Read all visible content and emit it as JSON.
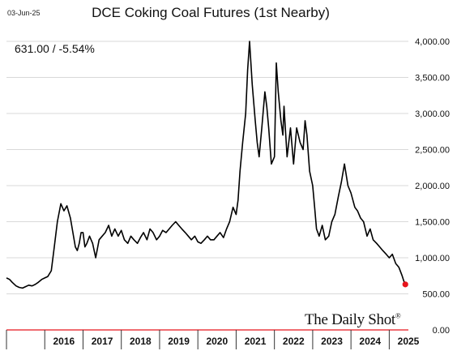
{
  "header": {
    "date": "03-Jun-25",
    "title": "DCE Coking Coal Futures (1st Nearby)",
    "readout": "631.00  /  -5.54%"
  },
  "logo": {
    "text": "The Daily Shot",
    "mark": "®"
  },
  "colors": {
    "line": "#000000",
    "last_point": "#e8141c",
    "grid": "#d9d9d9",
    "marker_line": "#e8141c"
  },
  "chart_data": {
    "type": "line",
    "title": "DCE Coking Coal Futures (1st Nearby)",
    "xlabel": "",
    "ylabel": "",
    "xlim": [
      2015.0,
      2025.5
    ],
    "ylim": [
      0,
      4000
    ],
    "y_axis_side": "right",
    "grid": true,
    "y_ticks": [
      0,
      500,
      1000,
      1500,
      2000,
      2500,
      3000,
      3500,
      4000
    ],
    "y_tick_labels": [
      "0.00",
      "500.00",
      "1,000.00",
      "1,500.00",
      "2,000.00",
      "2,500.00",
      "3,000.00",
      "3,500.00",
      "4,000.00"
    ],
    "x_tick_labels": [
      "2016",
      "2017",
      "2018",
      "2019",
      "2020",
      "2021",
      "2022",
      "2023",
      "2024",
      "2025"
    ],
    "x_tick_positions": [
      2016.0,
      2017.0,
      2018.0,
      2019.0,
      2020.0,
      2021.0,
      2022.0,
      2023.0,
      2024.0,
      2025.0
    ],
    "series": [
      {
        "x": [
          2015.0,
          2015.08,
          2015.15,
          2015.25,
          2015.33,
          2015.42,
          2015.5,
          2015.58,
          2015.67,
          2015.75,
          2015.83,
          2015.92,
          2016.0,
          2016.08,
          2016.17,
          2016.25,
          2016.33,
          2016.42,
          2016.5,
          2016.58,
          2016.67,
          2016.75,
          2016.8,
          2016.85,
          2016.9,
          2016.95,
          2017.0,
          2017.05,
          2017.1,
          2017.17,
          2017.25,
          2017.33,
          2017.42,
          2017.5,
          2017.58,
          2017.67,
          2017.75,
          2017.83,
          2017.92,
          2018.0,
          2018.08,
          2018.17,
          2018.25,
          2018.33,
          2018.42,
          2018.5,
          2018.58,
          2018.67,
          2018.75,
          2018.83,
          2018.92,
          2019.0,
          2019.08,
          2019.17,
          2019.25,
          2019.33,
          2019.42,
          2019.5,
          2019.58,
          2019.67,
          2019.75,
          2019.83,
          2019.92,
          2020.0,
          2020.08,
          2020.17,
          2020.25,
          2020.33,
          2020.42,
          2020.5,
          2020.58,
          2020.67,
          2020.75,
          2020.83,
          2020.92,
          2021.0,
          2021.05,
          2021.1,
          2021.17,
          2021.25,
          2021.3,
          2021.35,
          2021.42,
          2021.5,
          2021.55,
          2021.6,
          2021.67,
          2021.75,
          2021.8,
          2021.85,
          2021.92,
          2022.0,
          2022.05,
          2022.1,
          2022.17,
          2022.22,
          2022.25,
          2022.33,
          2022.42,
          2022.5,
          2022.58,
          2022.67,
          2022.75,
          2022.8,
          2022.85,
          2022.92,
          2023.0,
          2023.05,
          2023.1,
          2023.17,
          2023.25,
          2023.33,
          2023.42,
          2023.5,
          2023.58,
          2023.67,
          2023.75,
          2023.83,
          2023.92,
          2024.0,
          2024.05,
          2024.1,
          2024.17,
          2024.25,
          2024.33,
          2024.42,
          2024.5,
          2024.58,
          2024.67,
          2024.75,
          2024.83,
          2024.92,
          2025.0,
          2025.08,
          2025.17,
          2025.25,
          2025.33,
          2025.38,
          2025.42
        ],
        "y": [
          720,
          700,
          660,
          610,
          590,
          580,
          600,
          620,
          610,
          630,
          660,
          700,
          720,
          740,
          820,
          1150,
          1500,
          1750,
          1650,
          1720,
          1550,
          1300,
          1150,
          1100,
          1200,
          1350,
          1350,
          1150,
          1200,
          1300,
          1200,
          1000,
          1250,
          1300,
          1350,
          1450,
          1300,
          1400,
          1300,
          1380,
          1250,
          1200,
          1300,
          1250,
          1200,
          1280,
          1350,
          1250,
          1400,
          1350,
          1250,
          1300,
          1380,
          1350,
          1400,
          1450,
          1500,
          1450,
          1400,
          1350,
          1300,
          1250,
          1300,
          1220,
          1200,
          1250,
          1300,
          1250,
          1250,
          1300,
          1350,
          1280,
          1400,
          1500,
          1700,
          1600,
          1800,
          2200,
          2600,
          3000,
          3600,
          4000,
          3400,
          2900,
          2600,
          2400,
          2800,
          3300,
          3100,
          2800,
          2300,
          2400,
          3700,
          3300,
          2900,
          2700,
          3100,
          2400,
          2800,
          2300,
          2800,
          2600,
          2500,
          2900,
          2700,
          2200,
          2000,
          1700,
          1400,
          1300,
          1450,
          1250,
          1300,
          1500,
          1600,
          1850,
          2050,
          2300,
          2000,
          1900,
          1800,
          1700,
          1650,
          1550,
          1500,
          1300,
          1400,
          1250,
          1200,
          1150,
          1100,
          1050,
          1000,
          1050,
          920,
          870,
          760,
          680,
          631
        ]
      }
    ],
    "last_point": {
      "x": 2025.42,
      "y": 631
    }
  }
}
